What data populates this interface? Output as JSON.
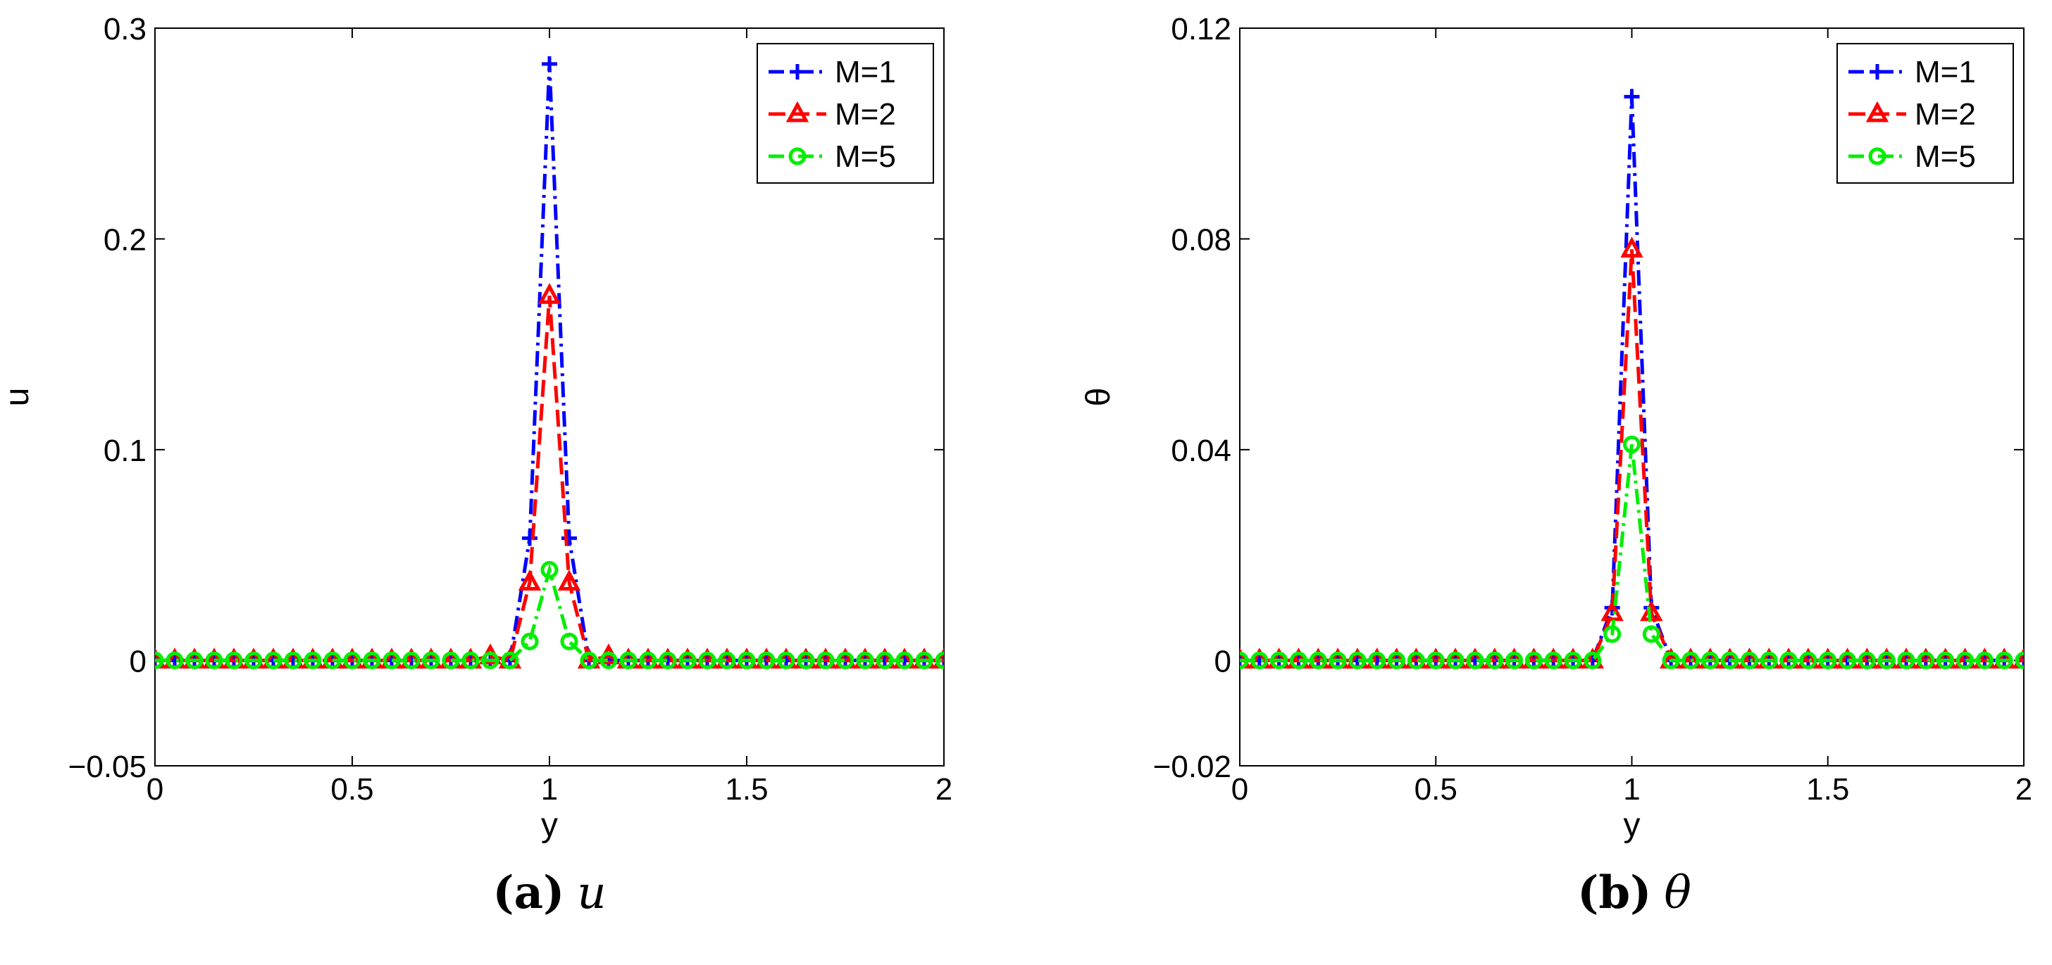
{
  "chart_data": [
    {
      "type": "line",
      "panel": "a",
      "caption_letter": "(a)",
      "caption_symbol": "u",
      "xlabel": "y",
      "ylabel": "u",
      "xlim": [
        0,
        2
      ],
      "ylim": [
        -0.05,
        0.3
      ],
      "xticks": [
        0,
        0.5,
        1,
        1.5,
        2
      ],
      "xtick_labels": [
        "0",
        "0.5",
        "1",
        "1.5",
        "2"
      ],
      "yticks": [
        -0.05,
        0,
        0.1,
        0.2,
        0.3
      ],
      "ytick_labels": [
        "−0.05",
        "0",
        "0.1",
        "0.2",
        "0.3"
      ],
      "legend_position": "top-right",
      "x": [
        0,
        0.05,
        0.1,
        0.15,
        0.2,
        0.25,
        0.3,
        0.35,
        0.4,
        0.45,
        0.5,
        0.55,
        0.6,
        0.65,
        0.7,
        0.75,
        0.8,
        0.85,
        0.9,
        0.95,
        1.0,
        1.05,
        1.1,
        1.15,
        1.2,
        1.25,
        1.3,
        1.35,
        1.4,
        1.45,
        1.5,
        1.55,
        1.6,
        1.65,
        1.7,
        1.75,
        1.8,
        1.85,
        1.9,
        1.95,
        2.0
      ],
      "series": [
        {
          "name": "M=1",
          "color": "#0000ff",
          "marker": "plus",
          "dash": "dashdot",
          "values": [
            0,
            0,
            0,
            0,
            0,
            0,
            0,
            0,
            0,
            0,
            0,
            0,
            0,
            0,
            0,
            0,
            0,
            0,
            0,
            0.058,
            0.283,
            0.058,
            0,
            0,
            0,
            0,
            0,
            0,
            0,
            0,
            0,
            0,
            0,
            0,
            0,
            0,
            0,
            0,
            0,
            0,
            0
          ]
        },
        {
          "name": "M=2",
          "color": "#ff0000",
          "marker": "triangle",
          "dash": "dashed",
          "values": [
            0,
            0,
            0,
            0,
            0,
            0,
            0,
            0,
            0,
            0,
            0,
            0,
            0,
            0,
            0,
            0,
            0,
            0.002,
            0,
            0.037,
            0.173,
            0.037,
            0,
            0.002,
            0,
            0,
            0,
            0,
            0,
            0,
            0,
            0,
            0,
            0,
            0,
            0,
            0,
            0,
            0,
            0,
            0
          ]
        },
        {
          "name": "M=5",
          "color": "#00ee00",
          "marker": "circle",
          "dash": "dashdot",
          "values": [
            0,
            0,
            0,
            0,
            0,
            0,
            0,
            0,
            0,
            0,
            0,
            0,
            0,
            0,
            0,
            0,
            0,
            0,
            0,
            0.009,
            0.043,
            0.009,
            0,
            0,
            0,
            0,
            0,
            0,
            0,
            0,
            0,
            0,
            0,
            0,
            0,
            0,
            0,
            0,
            0,
            0,
            0
          ]
        }
      ]
    },
    {
      "type": "line",
      "panel": "b",
      "caption_letter": "(b)",
      "caption_symbol": "θ",
      "xlabel": "y",
      "ylabel": "θ",
      "xlim": [
        0,
        2
      ],
      "ylim": [
        -0.02,
        0.12
      ],
      "xticks": [
        0,
        0.5,
        1,
        1.5,
        2
      ],
      "xtick_labels": [
        "0",
        "0.5",
        "1",
        "1.5",
        "2"
      ],
      "yticks": [
        -0.02,
        0,
        0.04,
        0.08,
        0.12
      ],
      "ytick_labels": [
        "−0.02",
        "0",
        "0.04",
        "0.08",
        "0.12"
      ],
      "legend_position": "top-right",
      "x": [
        0,
        0.05,
        0.1,
        0.15,
        0.2,
        0.25,
        0.3,
        0.35,
        0.4,
        0.45,
        0.5,
        0.55,
        0.6,
        0.65,
        0.7,
        0.75,
        0.8,
        0.85,
        0.9,
        0.95,
        1.0,
        1.05,
        1.1,
        1.15,
        1.2,
        1.25,
        1.3,
        1.35,
        1.4,
        1.45,
        1.5,
        1.55,
        1.6,
        1.65,
        1.7,
        1.75,
        1.8,
        1.85,
        1.9,
        1.95,
        2.0
      ],
      "series": [
        {
          "name": "M=1",
          "color": "#0000ff",
          "marker": "plus",
          "dash": "dashdot",
          "values": [
            0,
            0,
            0,
            0,
            0,
            0,
            0,
            0,
            0,
            0,
            0,
            0,
            0,
            0,
            0,
            0,
            0,
            0,
            0,
            0.01,
            0.107,
            0.01,
            0,
            0,
            0,
            0,
            0,
            0,
            0,
            0,
            0,
            0,
            0,
            0,
            0,
            0,
            0,
            0,
            0,
            0,
            0
          ]
        },
        {
          "name": "M=2",
          "color": "#ff0000",
          "marker": "triangle",
          "dash": "dashed",
          "values": [
            0,
            0,
            0,
            0,
            0,
            0,
            0,
            0,
            0,
            0,
            0,
            0,
            0,
            0,
            0,
            0,
            0,
            0,
            0,
            0.009,
            0.078,
            0.009,
            0,
            0,
            0,
            0,
            0,
            0,
            0,
            0,
            0,
            0,
            0,
            0,
            0,
            0,
            0,
            0,
            0,
            0,
            0
          ]
        },
        {
          "name": "M=5",
          "color": "#00ee00",
          "marker": "circle",
          "dash": "dashdot",
          "values": [
            0,
            0,
            0,
            0,
            0,
            0,
            0,
            0,
            0,
            0,
            0,
            0,
            0,
            0,
            0,
            0,
            0,
            0,
            0,
            0.005,
            0.041,
            0.005,
            0,
            0,
            0,
            0,
            0,
            0,
            0,
            0,
            0,
            0,
            0,
            0,
            0,
            0,
            0,
            0,
            0,
            0,
            0
          ]
        }
      ]
    }
  ]
}
